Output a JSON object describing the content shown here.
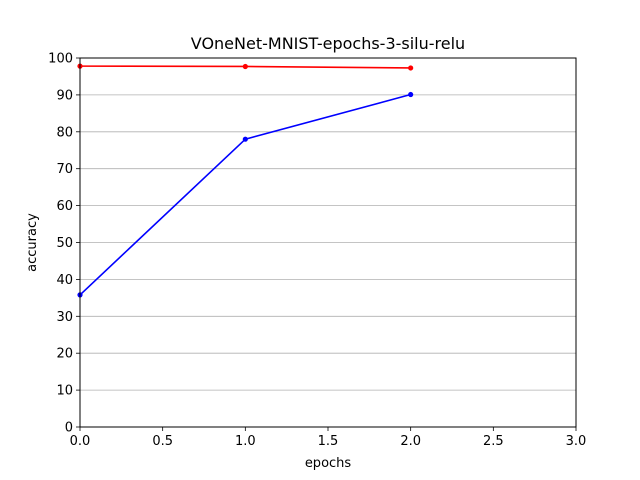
{
  "chart_data": {
    "type": "line",
    "title": "VOneNet-MNIST-epochs-3-silu-relu",
    "xlabel": "epochs",
    "ylabel": "accuracy",
    "xlim": [
      0,
      3
    ],
    "ylim": [
      0,
      100
    ],
    "xticks": [
      "0.0",
      "0.5",
      "1.0",
      "1.5",
      "2.0",
      "2.5",
      "3.0"
    ],
    "yticks": [
      "0",
      "10",
      "20",
      "30",
      "40",
      "50",
      "60",
      "70",
      "80",
      "90",
      "100"
    ],
    "grid": "horizontal",
    "series": [
      {
        "color": "#ff0000",
        "x": [
          0,
          1,
          2
        ],
        "y": [
          97.8,
          97.7,
          97.3
        ]
      },
      {
        "color": "#0000ff",
        "x": [
          0,
          1,
          2
        ],
        "y": [
          35.8,
          78.0,
          90.1
        ]
      }
    ]
  }
}
